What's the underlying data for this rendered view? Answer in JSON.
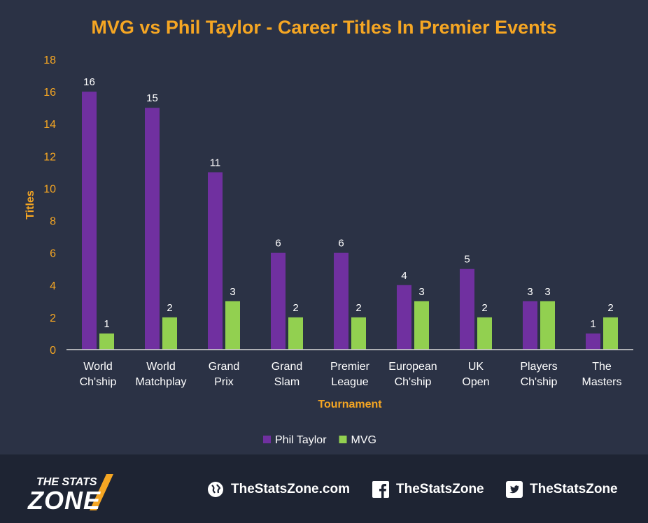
{
  "chart_data": {
    "type": "bar",
    "title": "MVG vs Phil Taylor - Career Titles In Premier Events",
    "xlabel": "Tournament",
    "ylabel": "Titles",
    "ylim": [
      0,
      18
    ],
    "yticks": [
      0,
      2,
      4,
      6,
      8,
      10,
      12,
      14,
      16,
      18
    ],
    "grid": false,
    "legend_position": "bottom",
    "categories": [
      [
        "World",
        "Ch'ship"
      ],
      [
        "World",
        "Matchplay"
      ],
      [
        "Grand",
        "Prix"
      ],
      [
        "Grand",
        "Slam"
      ],
      [
        "Premier",
        "League"
      ],
      [
        "European",
        "Ch'ship"
      ],
      [
        "UK",
        "Open"
      ],
      [
        "Players",
        "Ch'ship"
      ],
      [
        "The",
        "Masters"
      ]
    ],
    "series": [
      {
        "name": "Phil Taylor",
        "color": "#7030a0",
        "values": [
          16,
          15,
          11,
          6,
          6,
          4,
          5,
          3,
          1
        ]
      },
      {
        "name": "MVG",
        "color": "#92d050",
        "values": [
          1,
          2,
          3,
          2,
          2,
          3,
          2,
          3,
          2
        ]
      }
    ]
  },
  "footer": {
    "logo": {
      "line1": "THE STATS",
      "line2": "ZONE"
    },
    "website": "TheStatsZone.com",
    "facebook": "TheStatsZone",
    "twitter": "TheStatsZone",
    "icons": {
      "website": "globe-icon",
      "facebook": "facebook-icon",
      "twitter": "twitter-icon"
    }
  }
}
